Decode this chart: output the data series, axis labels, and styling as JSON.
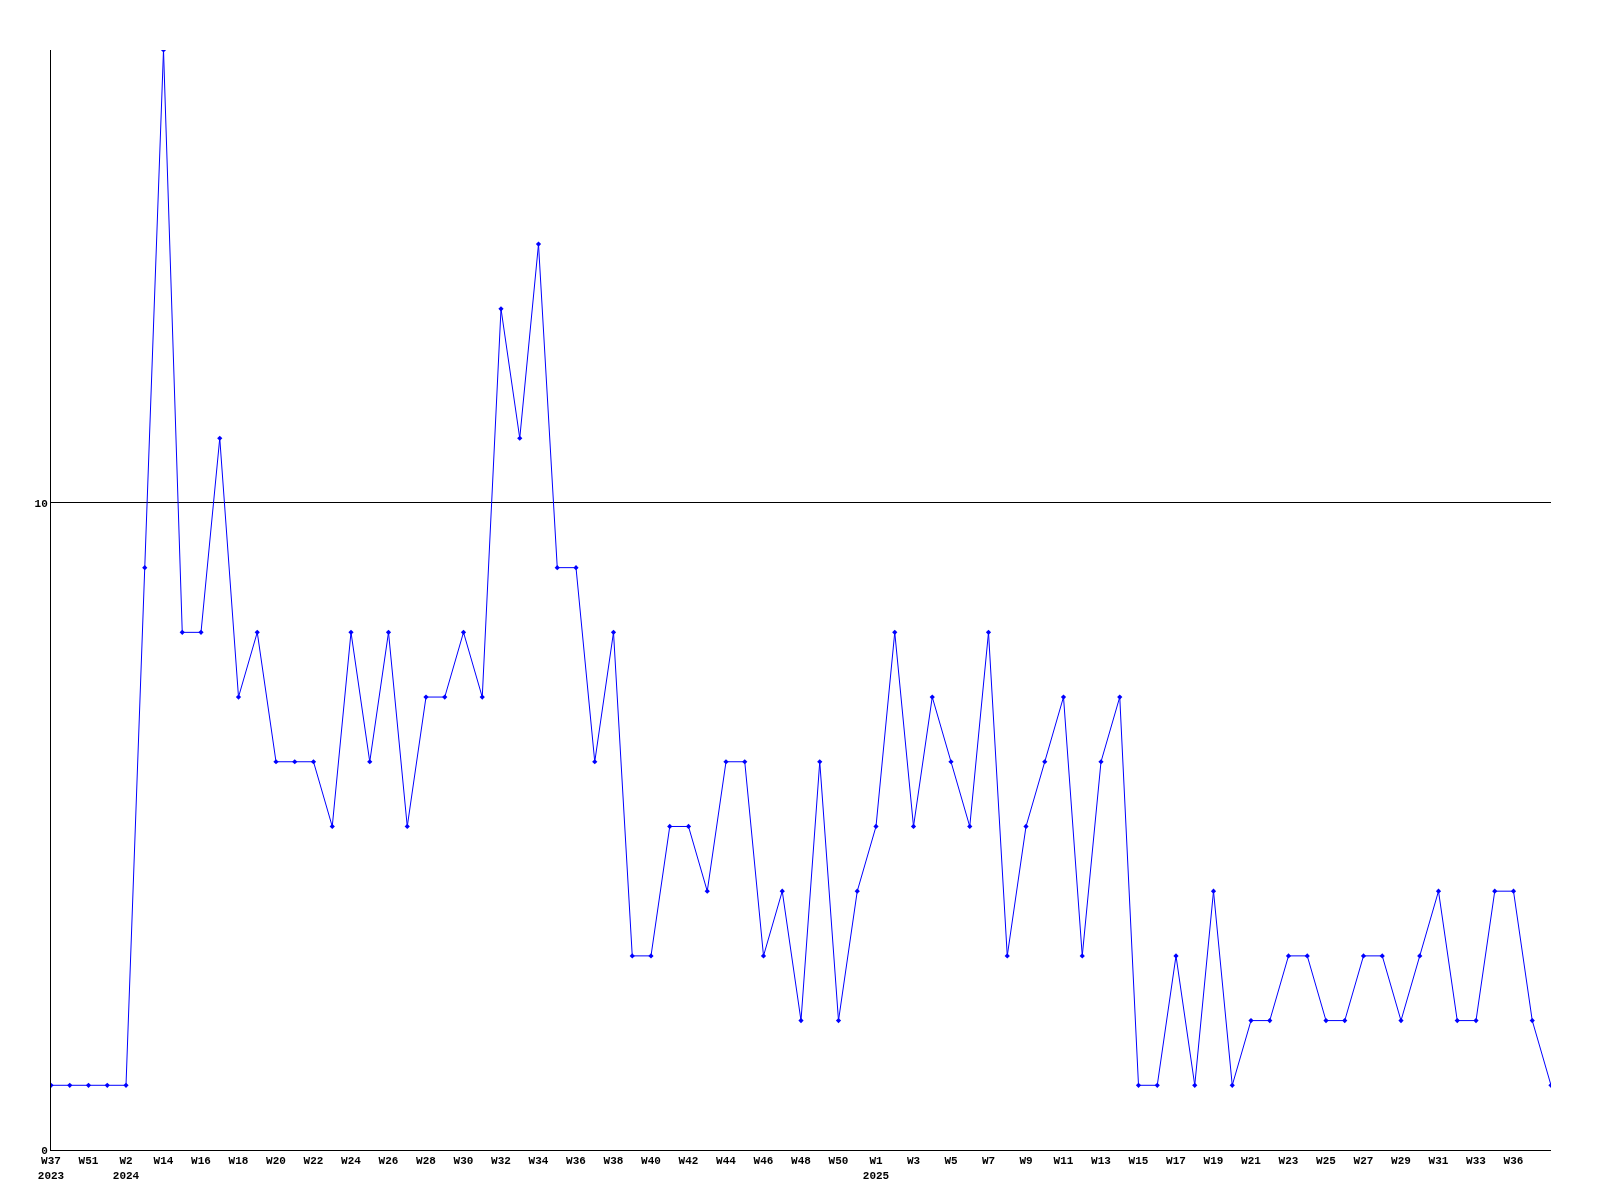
{
  "chart_data": {
    "type": "line",
    "categories": [
      "W37\n2023",
      null,
      "W51",
      null,
      "W2\n2024",
      null,
      "W14",
      null,
      "W16",
      null,
      "W18",
      null,
      "W20",
      null,
      "W22",
      null,
      "W24",
      null,
      "W26",
      null,
      "W28",
      null,
      "W30",
      null,
      "W32",
      null,
      "W34",
      null,
      "W36",
      null,
      "W38",
      null,
      "W40",
      null,
      "W42",
      null,
      "W44",
      null,
      "W46",
      null,
      "W48",
      null,
      "W50",
      null,
      "W1\n2025",
      null,
      "W3",
      null,
      "W5",
      null,
      "W7",
      null,
      "W9",
      null,
      "W11",
      null,
      "W13",
      null,
      "W15",
      null,
      "W17",
      null,
      "W19",
      null,
      "W21",
      null,
      "W23",
      null,
      "W25",
      null,
      "W27",
      null,
      "W29",
      null,
      "W31",
      null,
      "W33",
      null,
      "W36",
      null,
      null
    ],
    "series": [
      {
        "color": "#0000ff",
        "values": [
          1,
          1,
          1,
          1,
          1,
          9,
          17,
          8,
          8,
          11,
          7,
          8,
          6,
          6,
          6,
          5,
          8,
          6,
          8,
          5,
          7,
          7,
          8,
          7,
          13,
          11,
          14,
          9,
          9,
          6,
          8,
          3,
          3,
          5,
          5,
          4,
          6,
          6,
          3,
          4,
          2,
          6,
          2,
          4,
          5,
          8,
          5,
          7,
          6,
          5,
          8,
          3,
          5,
          6,
          7,
          3,
          6,
          7,
          1,
          1,
          3,
          1,
          4,
          1,
          2,
          2,
          3,
          3,
          2,
          2,
          3,
          3,
          2,
          3,
          4,
          2,
          2,
          4,
          4,
          2,
          1
        ]
      }
    ],
    "ylim": [
      0,
      17
    ],
    "yticks": [
      0,
      10
    ],
    "grid": "y",
    "marker": "diamond",
    "line_style": "solid"
  }
}
